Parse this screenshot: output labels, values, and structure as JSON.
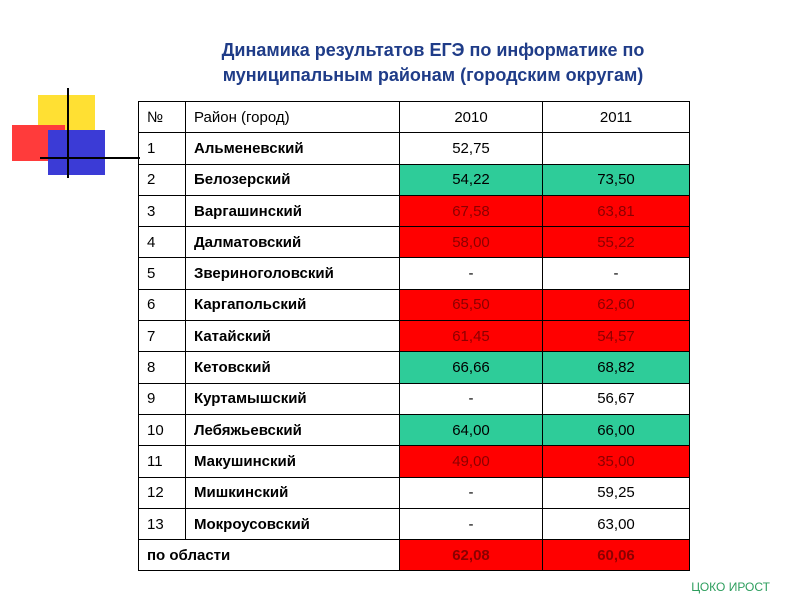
{
  "title": [
    "Динамика результатов ЕГЭ по информатике по",
    "муниципальным районам (городским округам)"
  ],
  "table": {
    "header": [
      "№",
      "Район (город)",
      "2010",
      "2011"
    ],
    "rows": [
      {
        "cells": [
          "1",
          "Альменевский",
          "52,75",
          null
        ],
        "color": null
      },
      {
        "cells": [
          "2",
          "Белозерский",
          "54,22",
          "73,50"
        ],
        "color": "#2ecc99"
      },
      {
        "cells": [
          "3",
          "Варгашинский",
          "67,58",
          "63,81"
        ],
        "color": "#ff0000"
      },
      {
        "cells": [
          "4",
          "Далматовский",
          "58,00",
          "55,22"
        ],
        "color": "#ff0000"
      },
      {
        "cells": [
          "5",
          "Звериноголовский",
          "-",
          "-"
        ],
        "color": null
      },
      {
        "cells": [
          "6",
          "Каргапольский",
          "65,50",
          "62,60"
        ],
        "color": "#ff0000"
      },
      {
        "cells": [
          "7",
          "Катайский",
          "61,45",
          "54,57"
        ],
        "color": "#ff0000"
      },
      {
        "cells": [
          "8",
          "Кетовский",
          "66,66",
          "68,82"
        ],
        "color": "#2ecc99"
      },
      {
        "cells": [
          "9",
          "Куртамышский",
          "-",
          "56,67"
        ],
        "color": null
      },
      {
        "cells": [
          "10",
          "Лебяжьевский",
          "64,00",
          "66,00"
        ],
        "color": "#2ecc99"
      },
      {
        "cells": [
          "11",
          "Макушинский",
          "49,00",
          "35,00"
        ],
        "color": "#ff0000"
      },
      {
        "cells": [
          "12",
          "Мишкинский",
          "-",
          "59,25"
        ],
        "color": null
      },
      {
        "cells": [
          "13",
          "Мокроусовский",
          "-",
          "63,00"
        ],
        "color": null
      }
    ],
    "total": {
      "cells": [
        "по области",
        "62,08",
        "60,06"
      ],
      "color": "#ff0000"
    }
  },
  "footer": "ЦОКО ИРОСТ"
}
